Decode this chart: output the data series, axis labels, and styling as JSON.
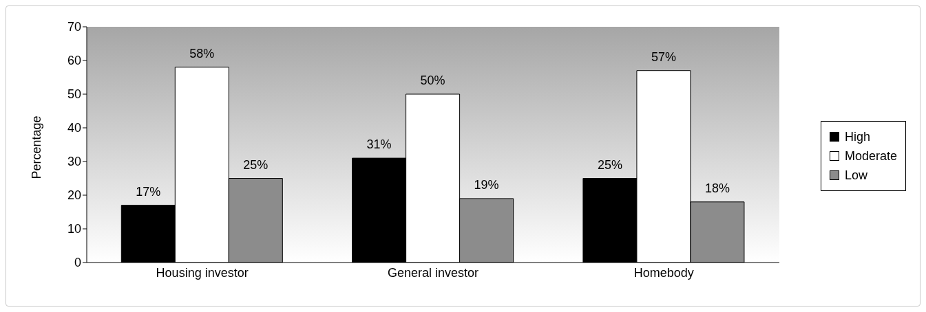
{
  "chart_data": {
    "type": "bar",
    "ylabel": "Percentage",
    "categories": [
      "Housing investor",
      "General investor",
      "Homebody"
    ],
    "series": [
      {
        "name": "High",
        "color": "#000000",
        "values": [
          17,
          31,
          25
        ],
        "value_labels": [
          "17%",
          "31%",
          "25%"
        ]
      },
      {
        "name": "Moderate",
        "color": "#ffffff",
        "values": [
          58,
          50,
          57
        ],
        "value_labels": [
          "58%",
          "50%",
          "57%"
        ]
      },
      {
        "name": "Low",
        "color": "#8c8c8c",
        "values": [
          25,
          19,
          18
        ],
        "value_labels": [
          "25%",
          "19%",
          "18%"
        ]
      }
    ],
    "ylim": [
      0,
      70
    ],
    "yticks": [
      0,
      10,
      20,
      30,
      40,
      50,
      60,
      70
    ],
    "grid": false,
    "legend": "right"
  }
}
